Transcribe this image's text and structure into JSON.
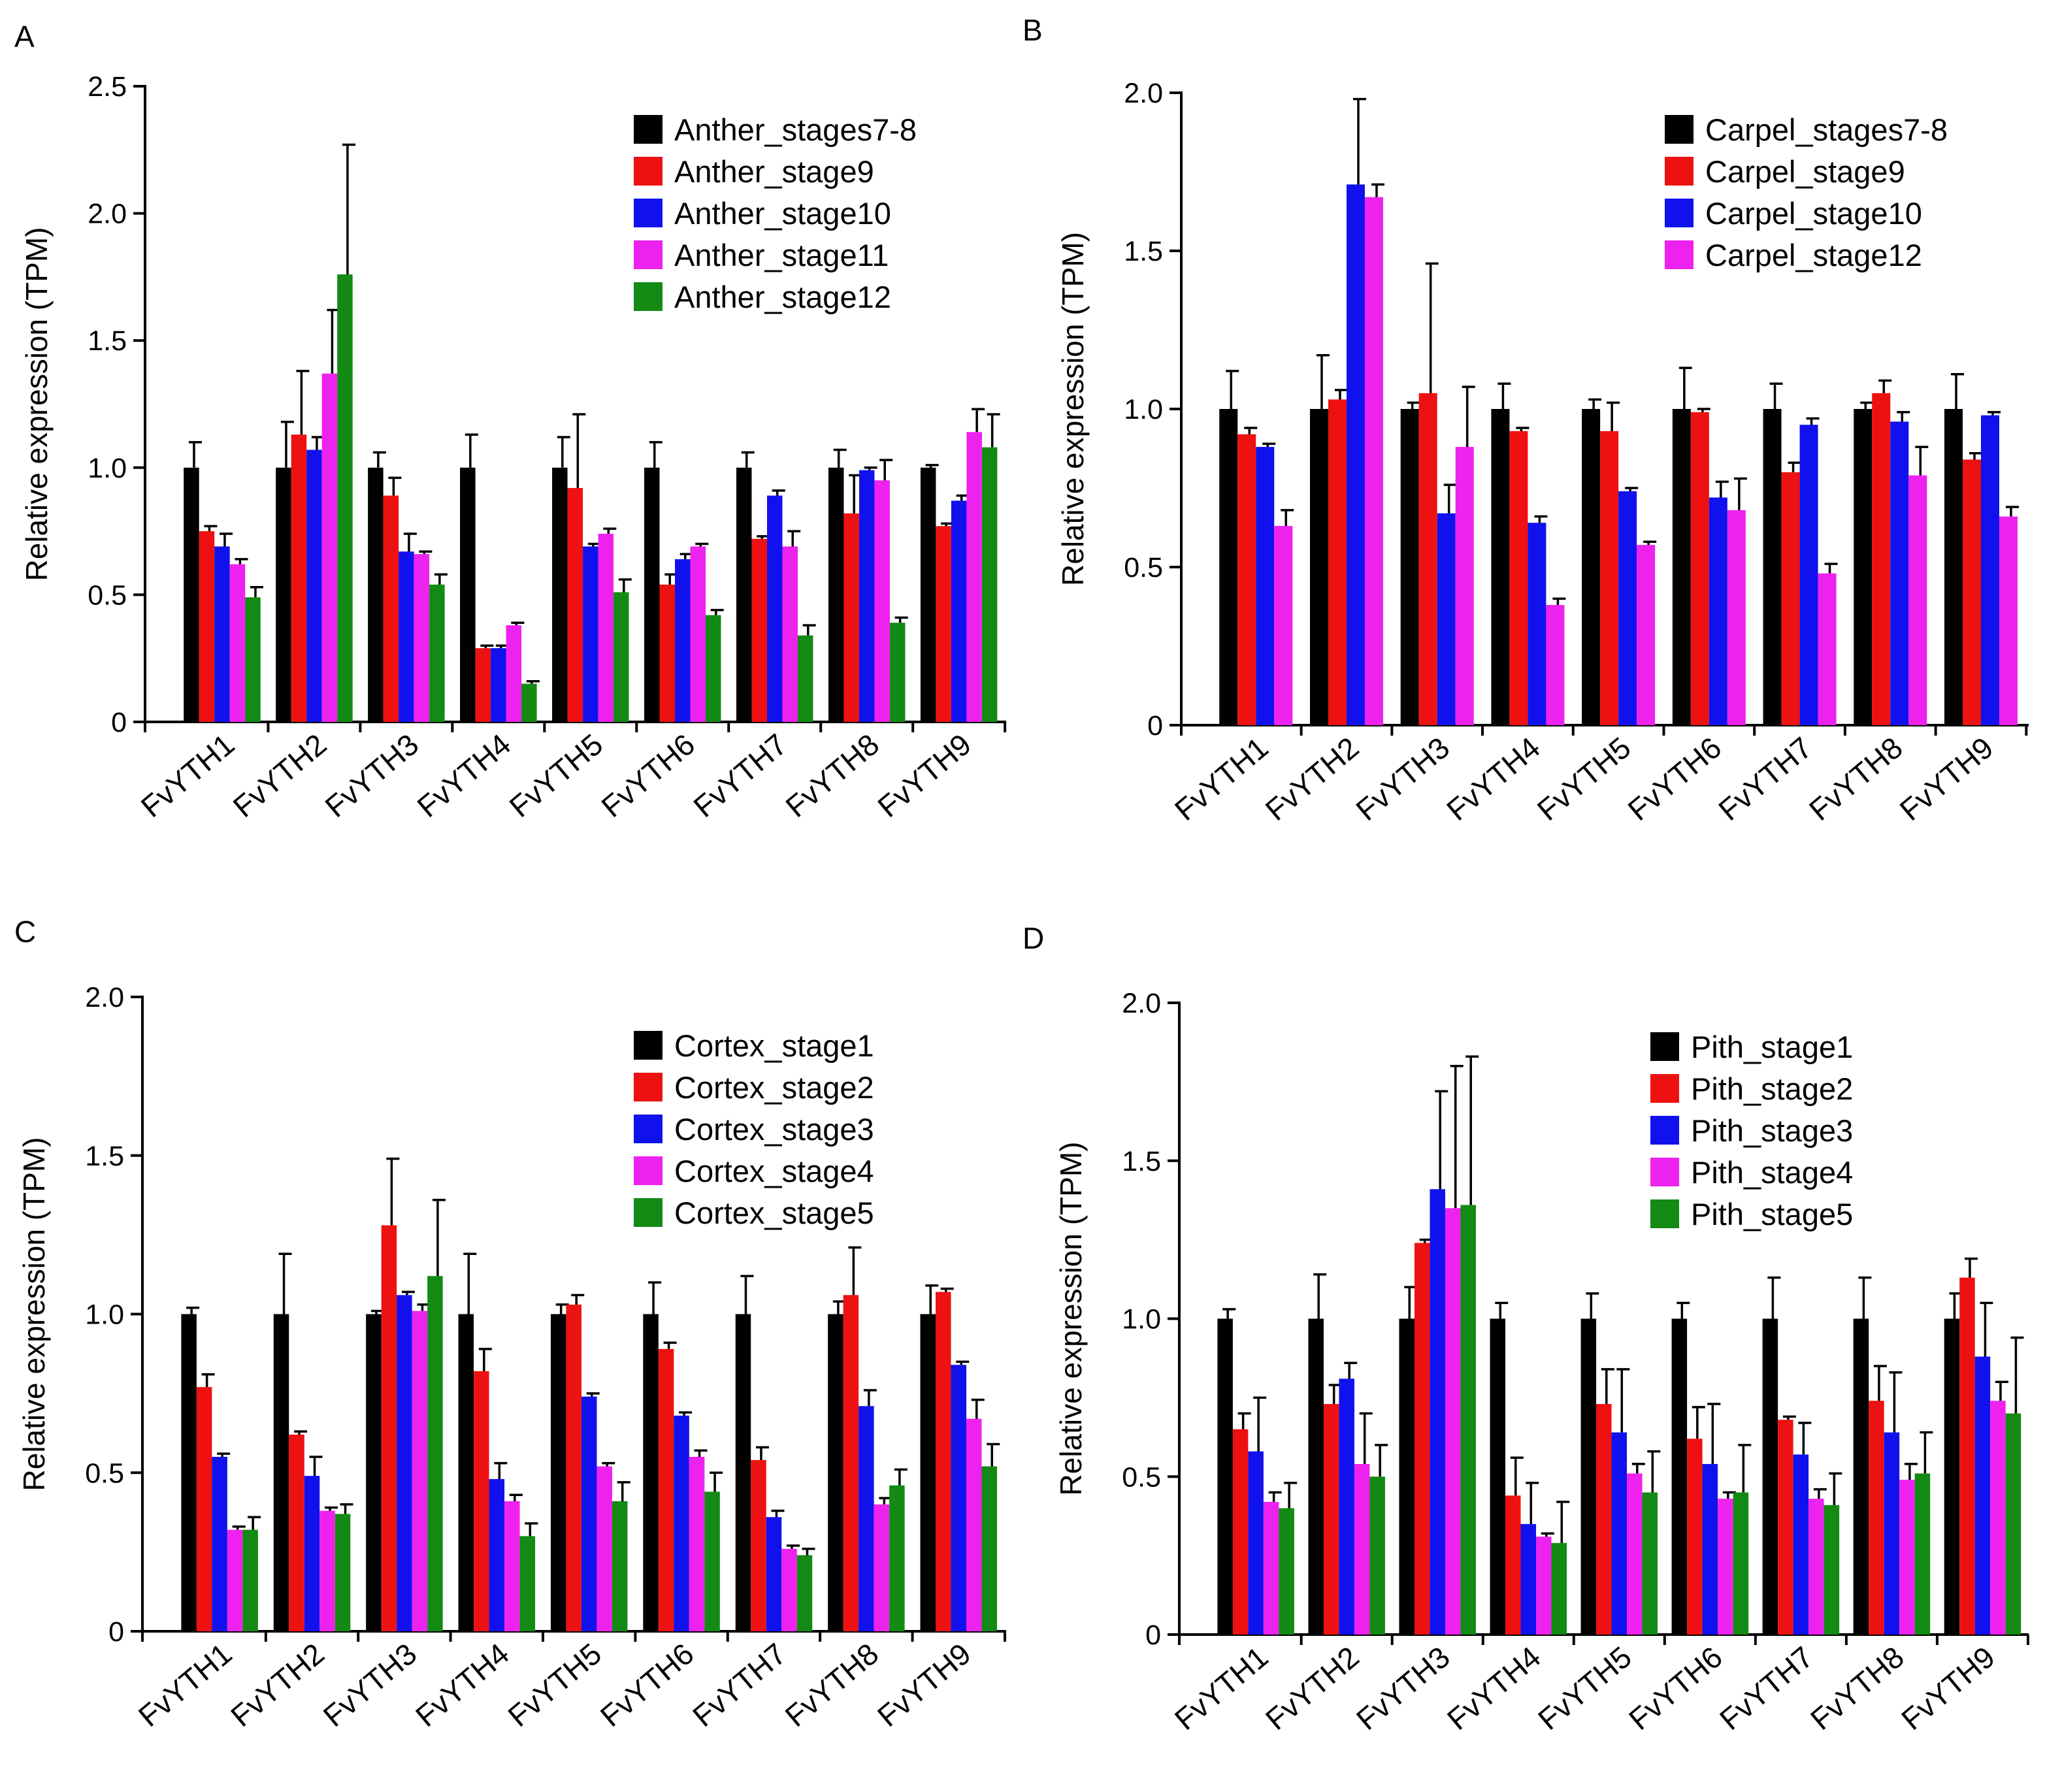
{
  "figure": {
    "colors": {
      "black": "#000000",
      "red": "#ee1111",
      "blue": "#1111ee",
      "magenta": "#ee22ee",
      "green": "#138a13"
    }
  },
  "chart_data": [
    {
      "id": "A",
      "panel_label": "A",
      "type": "bar",
      "title": "",
      "xlabel": "",
      "ylabel": "Relative expression (TPM)",
      "ylim": [
        0,
        2.5
      ],
      "yticks": [
        0,
        0.5,
        1.0,
        1.5,
        2.0,
        2.5
      ],
      "ytick_labels": [
        "0",
        "0.5",
        "1.0",
        "1.5",
        "2.0",
        "2.5"
      ],
      "categories": [
        "FvYTH1",
        "FvYTH2",
        "FvYTH3",
        "FvYTH4",
        "FvYTH5",
        "FvYTH6",
        "FvYTH7",
        "FvYTH8",
        "FvYTH9"
      ],
      "legend_position": "top-right",
      "grid": false,
      "series": [
        {
          "name": "Anther_stages7-8",
          "color": "#000000",
          "values": [
            1.0,
            1.0,
            1.0,
            1.0,
            1.0,
            1.0,
            1.0,
            1.0,
            1.0
          ],
          "errors": [
            0.1,
            0.18,
            0.06,
            0.13,
            0.12,
            0.1,
            0.06,
            0.07,
            0.01
          ]
        },
        {
          "name": "Anther_stage9",
          "color": "#ee1111",
          "values": [
            0.75,
            1.13,
            0.89,
            0.29,
            0.92,
            0.54,
            0.72,
            0.82,
            0.77
          ],
          "errors": [
            0.02,
            0.25,
            0.07,
            0.01,
            0.29,
            0.04,
            0.01,
            0.15,
            0.01
          ]
        },
        {
          "name": "Anther_stage10",
          "color": "#1111ee",
          "values": [
            0.69,
            1.07,
            0.67,
            0.29,
            0.69,
            0.64,
            0.89,
            0.99,
            0.87
          ],
          "errors": [
            0.05,
            0.05,
            0.07,
            0.01,
            0.01,
            0.02,
            0.02,
            0.01,
            0.02
          ]
        },
        {
          "name": "Anther_stage11",
          "color": "#ee22ee",
          "values": [
            0.62,
            1.37,
            0.66,
            0.38,
            0.74,
            0.69,
            0.69,
            0.95,
            1.14
          ],
          "errors": [
            0.02,
            0.25,
            0.01,
            0.01,
            0.02,
            0.01,
            0.06,
            0.08,
            0.09
          ]
        },
        {
          "name": "Anther_stage12",
          "color": "#138a13",
          "values": [
            0.49,
            1.76,
            0.54,
            0.15,
            0.51,
            0.42,
            0.34,
            0.39,
            1.08
          ],
          "errors": [
            0.04,
            0.51,
            0.04,
            0.01,
            0.05,
            0.02,
            0.04,
            0.02,
            0.13
          ]
        }
      ]
    },
    {
      "id": "B",
      "panel_label": "B",
      "type": "bar",
      "title": "",
      "xlabel": "",
      "ylabel": "Relative expression (TPM)",
      "ylim": [
        0,
        2.0
      ],
      "yticks": [
        0,
        0.5,
        1.0,
        1.5,
        2.0
      ],
      "ytick_labels": [
        "0",
        "0.5",
        "1.0",
        "1.5",
        "2.0"
      ],
      "categories": [
        "FvYTH1",
        "FvYTH2",
        "FvYTH3",
        "FvYTH4",
        "FvYTH5",
        "FvYTH6",
        "FvYTH7",
        "FvYTH8",
        "FvYTH9"
      ],
      "legend_position": "top-right",
      "grid": false,
      "series": [
        {
          "name": "Carpel_stages7-8",
          "color": "#000000",
          "values": [
            1.0,
            1.0,
            1.0,
            1.0,
            1.0,
            1.0,
            1.0,
            1.0,
            1.0
          ],
          "errors": [
            0.12,
            0.17,
            0.02,
            0.08,
            0.03,
            0.13,
            0.08,
            0.02,
            0.11
          ]
        },
        {
          "name": "Carpel_stage9",
          "color": "#ee1111",
          "values": [
            0.92,
            1.03,
            1.05,
            0.93,
            0.93,
            0.99,
            0.8,
            1.05,
            0.84
          ],
          "errors": [
            0.02,
            0.03,
            0.41,
            0.01,
            0.09,
            0.01,
            0.03,
            0.04,
            0.02
          ]
        },
        {
          "name": "Carpel_stage10",
          "color": "#1111ee",
          "values": [
            0.88,
            1.71,
            0.67,
            0.64,
            0.74,
            0.72,
            0.95,
            0.96,
            0.98
          ],
          "errors": [
            0.01,
            0.27,
            0.09,
            0.02,
            0.01,
            0.05,
            0.02,
            0.03,
            0.01
          ]
        },
        {
          "name": "Carpel_stage12",
          "color": "#ee22ee",
          "values": [
            0.63,
            1.67,
            0.88,
            0.38,
            0.57,
            0.68,
            0.48,
            0.79,
            0.66
          ],
          "errors": [
            0.05,
            0.04,
            0.19,
            0.02,
            0.01,
            0.1,
            0.03,
            0.09,
            0.03
          ]
        }
      ]
    },
    {
      "id": "C",
      "panel_label": "C",
      "type": "bar",
      "title": "",
      "xlabel": "",
      "ylabel": "Relative expression (TPM)",
      "ylim": [
        0,
        2.0
      ],
      "yticks": [
        0,
        0.5,
        1.0,
        1.5,
        2.0
      ],
      "ytick_labels": [
        "0",
        "0.5",
        "1.0",
        "1.5",
        "2.0"
      ],
      "categories": [
        "FvYTH1",
        "FvYTH2",
        "FvYTH3",
        "FvYTH4",
        "FvYTH5",
        "FvYTH6",
        "FvYTH7",
        "FvYTH8",
        "FvYTH9"
      ],
      "legend_position": "top-right",
      "grid": false,
      "series": [
        {
          "name": "Cortex_stage1",
          "color": "#000000",
          "values": [
            1.0,
            1.0,
            1.0,
            1.0,
            1.0,
            1.0,
            1.0,
            1.0,
            1.0
          ],
          "errors": [
            0.02,
            0.19,
            0.01,
            0.19,
            0.03,
            0.1,
            0.12,
            0.04,
            0.09
          ]
        },
        {
          "name": "Cortex_stage2",
          "color": "#ee1111",
          "values": [
            0.77,
            0.62,
            1.28,
            0.82,
            1.03,
            0.89,
            0.54,
            1.06,
            1.07
          ],
          "errors": [
            0.04,
            0.01,
            0.21,
            0.07,
            0.03,
            0.02,
            0.04,
            0.15,
            0.01
          ]
        },
        {
          "name": "Cortex_stage3",
          "color": "#1111ee",
          "values": [
            0.55,
            0.49,
            1.06,
            0.48,
            0.74,
            0.68,
            0.36,
            0.71,
            0.84
          ],
          "errors": [
            0.01,
            0.06,
            0.01,
            0.05,
            0.01,
            0.01,
            0.02,
            0.05,
            0.01
          ]
        },
        {
          "name": "Cortex_stage4",
          "color": "#ee22ee",
          "values": [
            0.32,
            0.38,
            1.01,
            0.41,
            0.52,
            0.55,
            0.26,
            0.4,
            0.67
          ],
          "errors": [
            0.01,
            0.01,
            0.02,
            0.02,
            0.01,
            0.02,
            0.01,
            0.02,
            0.06
          ]
        },
        {
          "name": "Cortex_stage5",
          "color": "#138a13",
          "values": [
            0.32,
            0.37,
            1.12,
            0.3,
            0.41,
            0.44,
            0.24,
            0.46,
            0.52
          ],
          "errors": [
            0.04,
            0.03,
            0.24,
            0.04,
            0.06,
            0.06,
            0.02,
            0.05,
            0.07
          ]
        }
      ]
    },
    {
      "id": "D",
      "panel_label": "D",
      "type": "bar",
      "title": "",
      "xlabel": "",
      "ylabel": "Relative expression (TPM)",
      "ylim": [
        0,
        2.0
      ],
      "yticks": [
        0,
        0.5,
        1.0,
        1.5,
        2.0
      ],
      "ytick_labels": [
        "0",
        "0.5",
        "1.0",
        "1.5",
        "2.0"
      ],
      "categories": [
        "FvYTH1",
        "FvYTH2",
        "FvYTH3",
        "FvYTH4",
        "FvYTH5",
        "FvYTH6",
        "FvYTH7",
        "FvYTH8",
        "FvYTH9"
      ],
      "legend_position": "top-right",
      "grid": false,
      "series": [
        {
          "name": "Pith_stage1",
          "color": "#000000",
          "values": [
            1.0,
            1.0,
            1.0,
            1.0,
            1.0,
            1.0,
            1.0,
            1.0,
            1.0
          ],
          "errors": [
            0.03,
            0.14,
            0.1,
            0.05,
            0.08,
            0.05,
            0.13,
            0.13,
            0.08
          ]
        },
        {
          "name": "Pith_stage2",
          "color": "#ee1111",
          "values": [
            0.65,
            0.73,
            1.24,
            0.44,
            0.73,
            0.62,
            0.68,
            0.74,
            1.13
          ],
          "errors": [
            0.05,
            0.06,
            0.01,
            0.12,
            0.11,
            0.1,
            0.01,
            0.11,
            0.06
          ]
        },
        {
          "name": "Pith_stage3",
          "color": "#1111ee",
          "values": [
            0.58,
            0.81,
            1.41,
            0.35,
            0.64,
            0.54,
            0.57,
            0.64,
            0.88
          ],
          "errors": [
            0.17,
            0.05,
            0.31,
            0.13,
            0.2,
            0.19,
            0.1,
            0.19,
            0.17
          ]
        },
        {
          "name": "Pith_stage4",
          "color": "#ee22ee",
          "values": [
            0.42,
            0.54,
            1.35,
            0.31,
            0.51,
            0.43,
            0.43,
            0.49,
            0.74
          ],
          "errors": [
            0.03,
            0.16,
            0.45,
            0.01,
            0.03,
            0.02,
            0.03,
            0.05,
            0.06
          ]
        },
        {
          "name": "Pith_stage5",
          "color": "#138a13",
          "values": [
            0.4,
            0.5,
            1.36,
            0.29,
            0.45,
            0.45,
            0.41,
            0.51,
            0.7
          ],
          "errors": [
            0.08,
            0.1,
            0.47,
            0.13,
            0.13,
            0.15,
            0.1,
            0.13,
            0.24
          ]
        }
      ]
    }
  ]
}
